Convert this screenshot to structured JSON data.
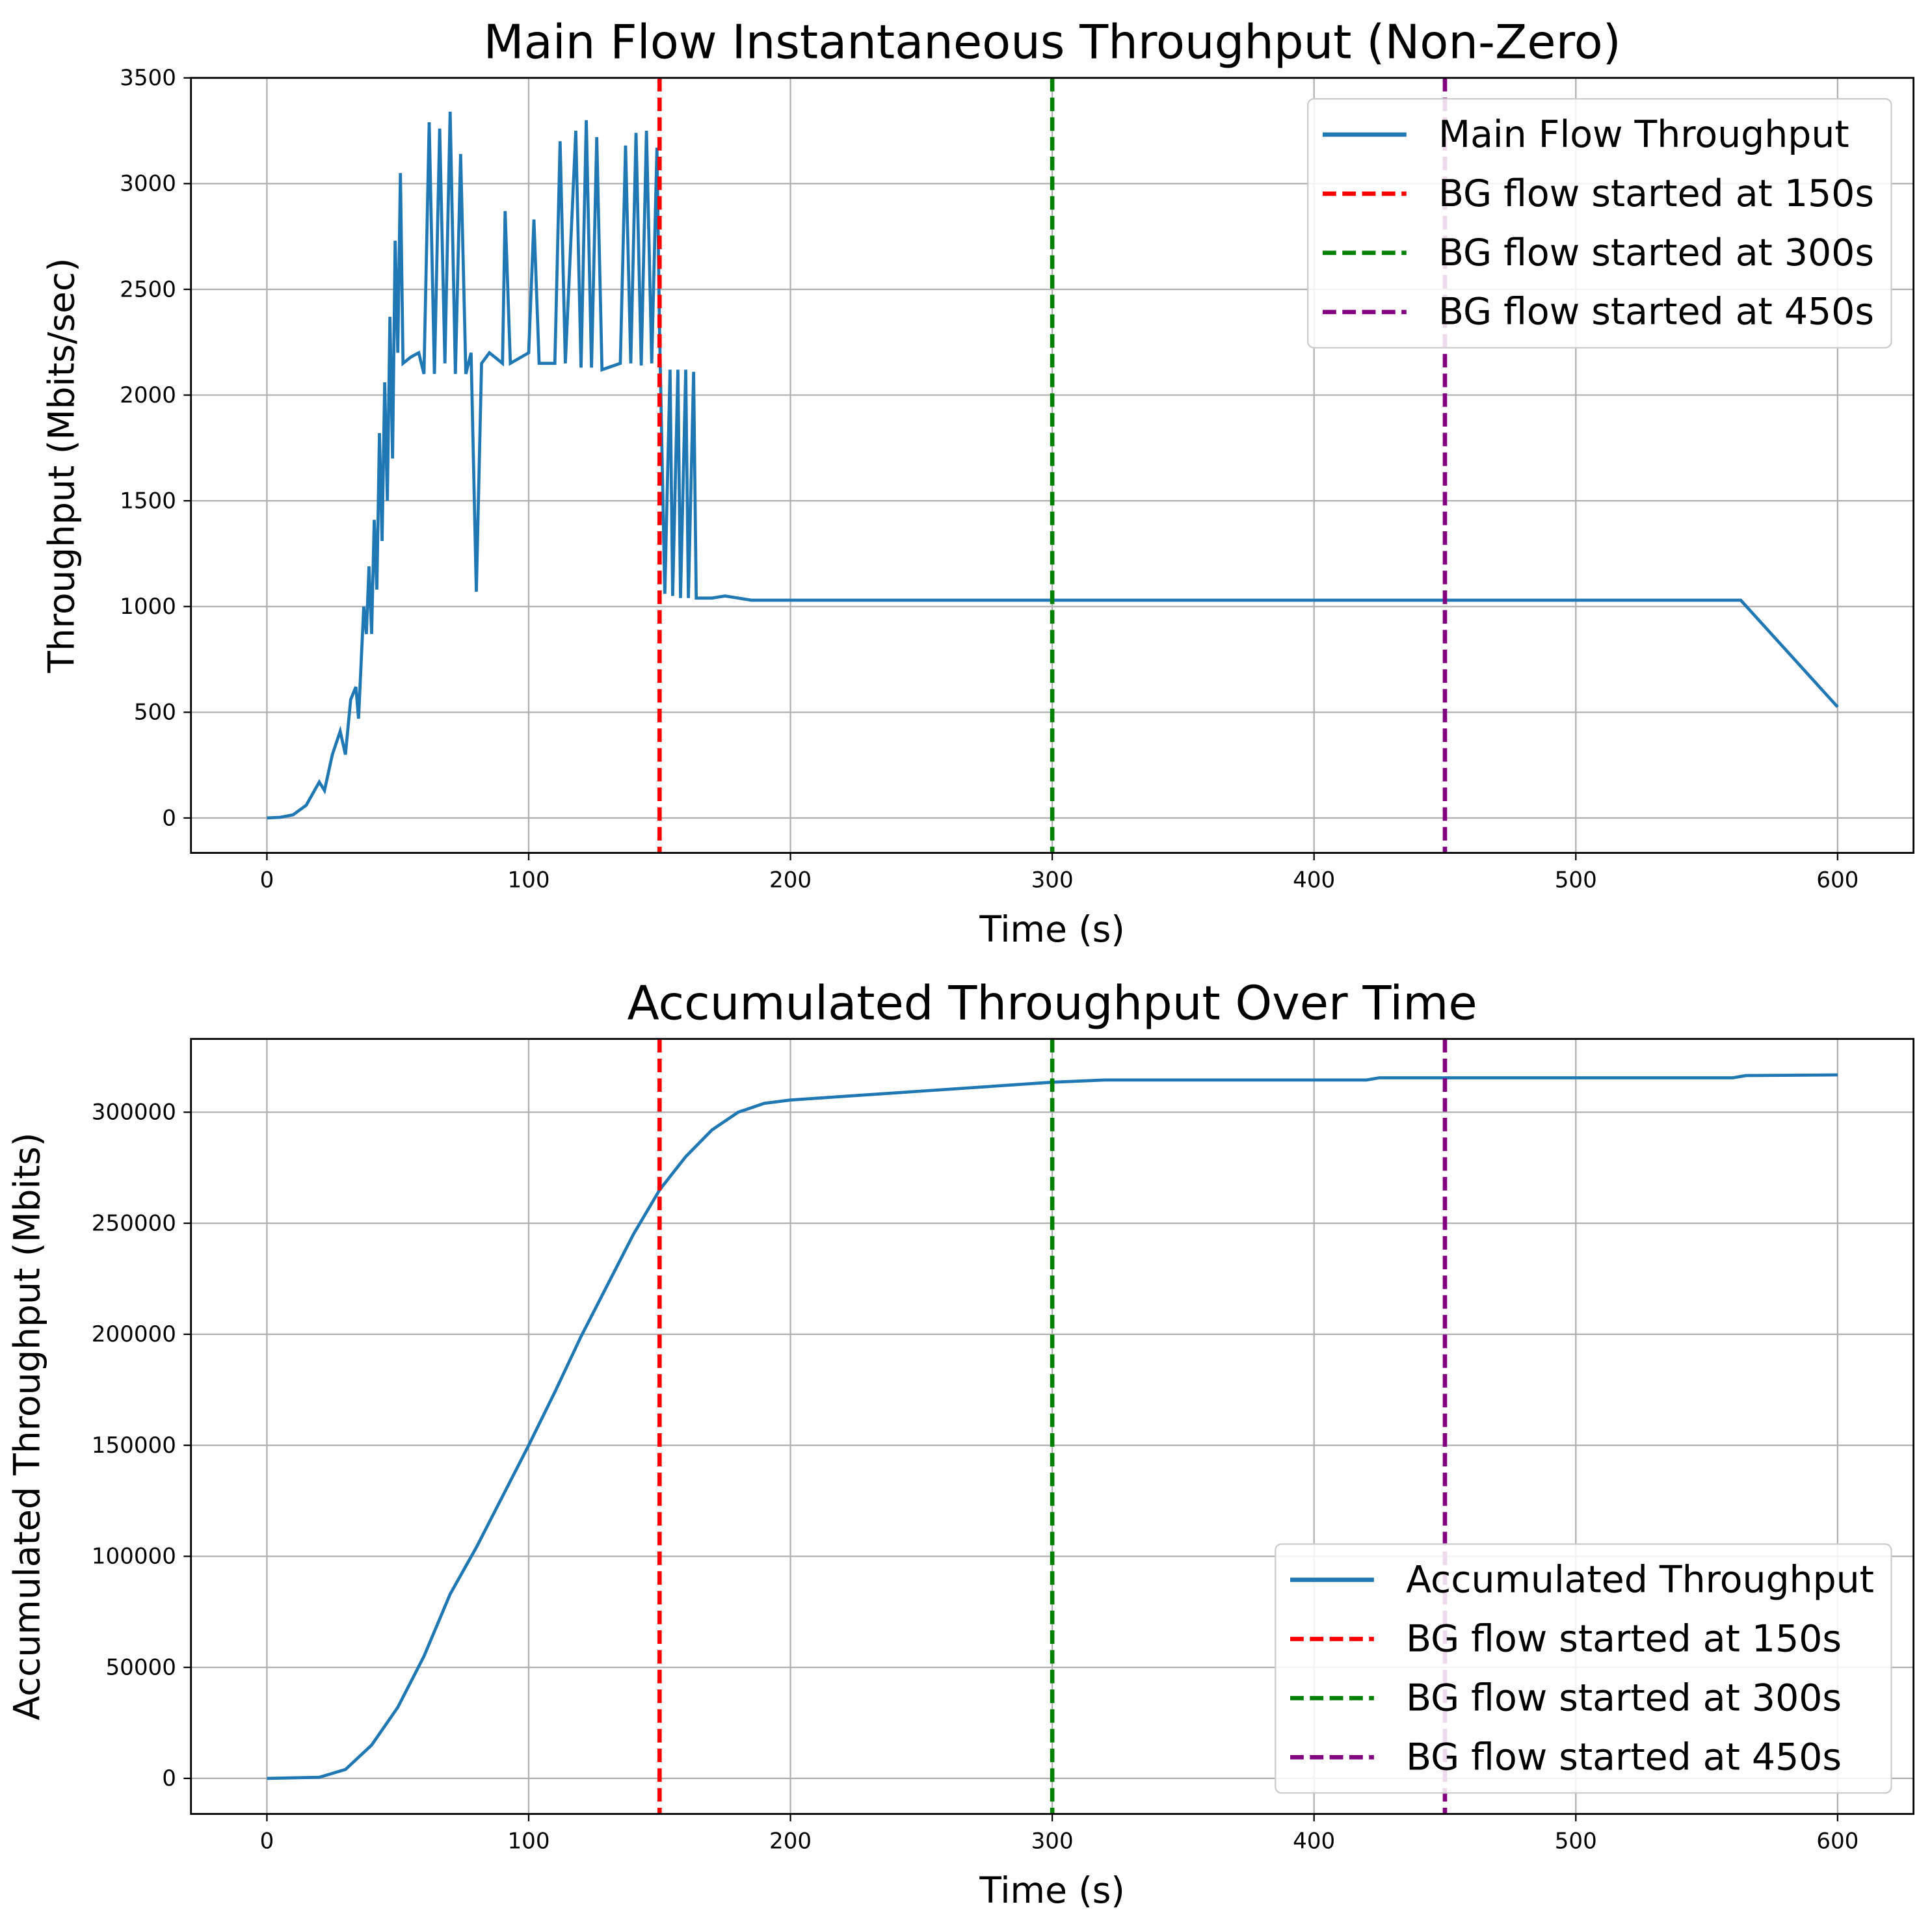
{
  "chart_data": [
    {
      "type": "line",
      "title": "Main Flow Instantaneous Throughput (Non-Zero)",
      "x_label": "Time (s)",
      "y_label": "Throughput (Mbits/sec)",
      "xlim": [
        -29,
        629
      ],
      "ylim": [
        -165,
        3500
      ],
      "xticks": [
        0,
        100,
        200,
        300,
        400,
        500,
        600
      ],
      "yticks": [
        0,
        500,
        1000,
        1500,
        2000,
        2500,
        3000,
        3500
      ],
      "grid": true,
      "legend": "upper right",
      "series": [
        {
          "name": "Main Flow Throughput",
          "color": "#1f77b4",
          "x": [
            0,
            5,
            10,
            15,
            20,
            22,
            25,
            28,
            30,
            32,
            34,
            35,
            37,
            38,
            39,
            40,
            41,
            42,
            43,
            44,
            45,
            46,
            47,
            48,
            49,
            50,
            51,
            52,
            55,
            58,
            60,
            62,
            64,
            66,
            68,
            70,
            72,
            74,
            76,
            78,
            80,
            82,
            85,
            90,
            91,
            93,
            100,
            102,
            104,
            110,
            112,
            114,
            118,
            120,
            122,
            124,
            126,
            128,
            135,
            137,
            139,
            141,
            143,
            145,
            147,
            149,
            150,
            152,
            154,
            155,
            157,
            158,
            160,
            161,
            163,
            164,
            170,
            175,
            180,
            185,
            563,
            600
          ],
          "values": [
            0,
            3,
            15,
            60,
            170,
            130,
            300,
            410,
            300,
            560,
            620,
            470,
            1000,
            870,
            1190,
            870,
            1410,
            1080,
            1820,
            1310,
            2060,
            1500,
            2370,
            1700,
            2730,
            2200,
            3050,
            2150,
            2180,
            2200,
            2100,
            3290,
            2100,
            3260,
            2150,
            3340,
            2100,
            3140,
            2100,
            2200,
            1070,
            2150,
            2200,
            2150,
            2870,
            2150,
            2200,
            2830,
            2150,
            2150,
            3200,
            2150,
            3250,
            2130,
            3300,
            2130,
            3220,
            2120,
            2150,
            3180,
            2150,
            3240,
            2140,
            3250,
            2150,
            3170,
            2300,
            1060,
            2120,
            1050,
            2120,
            1040,
            2120,
            1040,
            2110,
            1040,
            1040,
            1050,
            1040,
            1030,
            1030,
            525
          ]
        }
      ],
      "vlines": [
        {
          "name": "BG flow started at 150s",
          "x": 150,
          "color": "red"
        },
        {
          "name": "BG flow started at 300s",
          "x": 300,
          "color": "green"
        },
        {
          "name": "BG flow started at 450s",
          "x": 450,
          "color": "purple"
        }
      ]
    },
    {
      "type": "line",
      "title": "Accumulated Throughput Over Time",
      "x_label": "Time (s)",
      "y_label": "Accumulated Throughput (Mbits)",
      "xlim": [
        -29,
        629
      ],
      "ylim": [
        -16000,
        333000
      ],
      "xticks": [
        0,
        100,
        200,
        300,
        400,
        500,
        600
      ],
      "yticks": [
        0,
        50000,
        100000,
        150000,
        200000,
        250000,
        300000
      ],
      "grid": true,
      "legend": "lower right",
      "series": [
        {
          "name": "Accumulated Throughput",
          "color": "#1f77b4",
          "x": [
            0,
            20,
            30,
            40,
            50,
            60,
            70,
            80,
            90,
            100,
            110,
            120,
            130,
            140,
            150,
            160,
            170,
            180,
            190,
            200,
            250,
            300,
            320,
            420,
            425,
            560,
            565,
            600
          ],
          "values": [
            0,
            500,
            4000,
            15000,
            32000,
            55000,
            83000,
            104000,
            127000,
            150000,
            174000,
            199000,
            222000,
            245000,
            265000,
            280000,
            292000,
            300000,
            304000,
            305500,
            309500,
            313500,
            314500,
            314500,
            315500,
            315500,
            316500,
            316800
          ]
        }
      ],
      "vlines": [
        {
          "name": "BG flow started at 150s",
          "x": 150,
          "color": "red"
        },
        {
          "name": "BG flow started at 300s",
          "x": 300,
          "color": "green"
        },
        {
          "name": "BG flow started at 450s",
          "x": 450,
          "color": "purple"
        }
      ]
    }
  ]
}
